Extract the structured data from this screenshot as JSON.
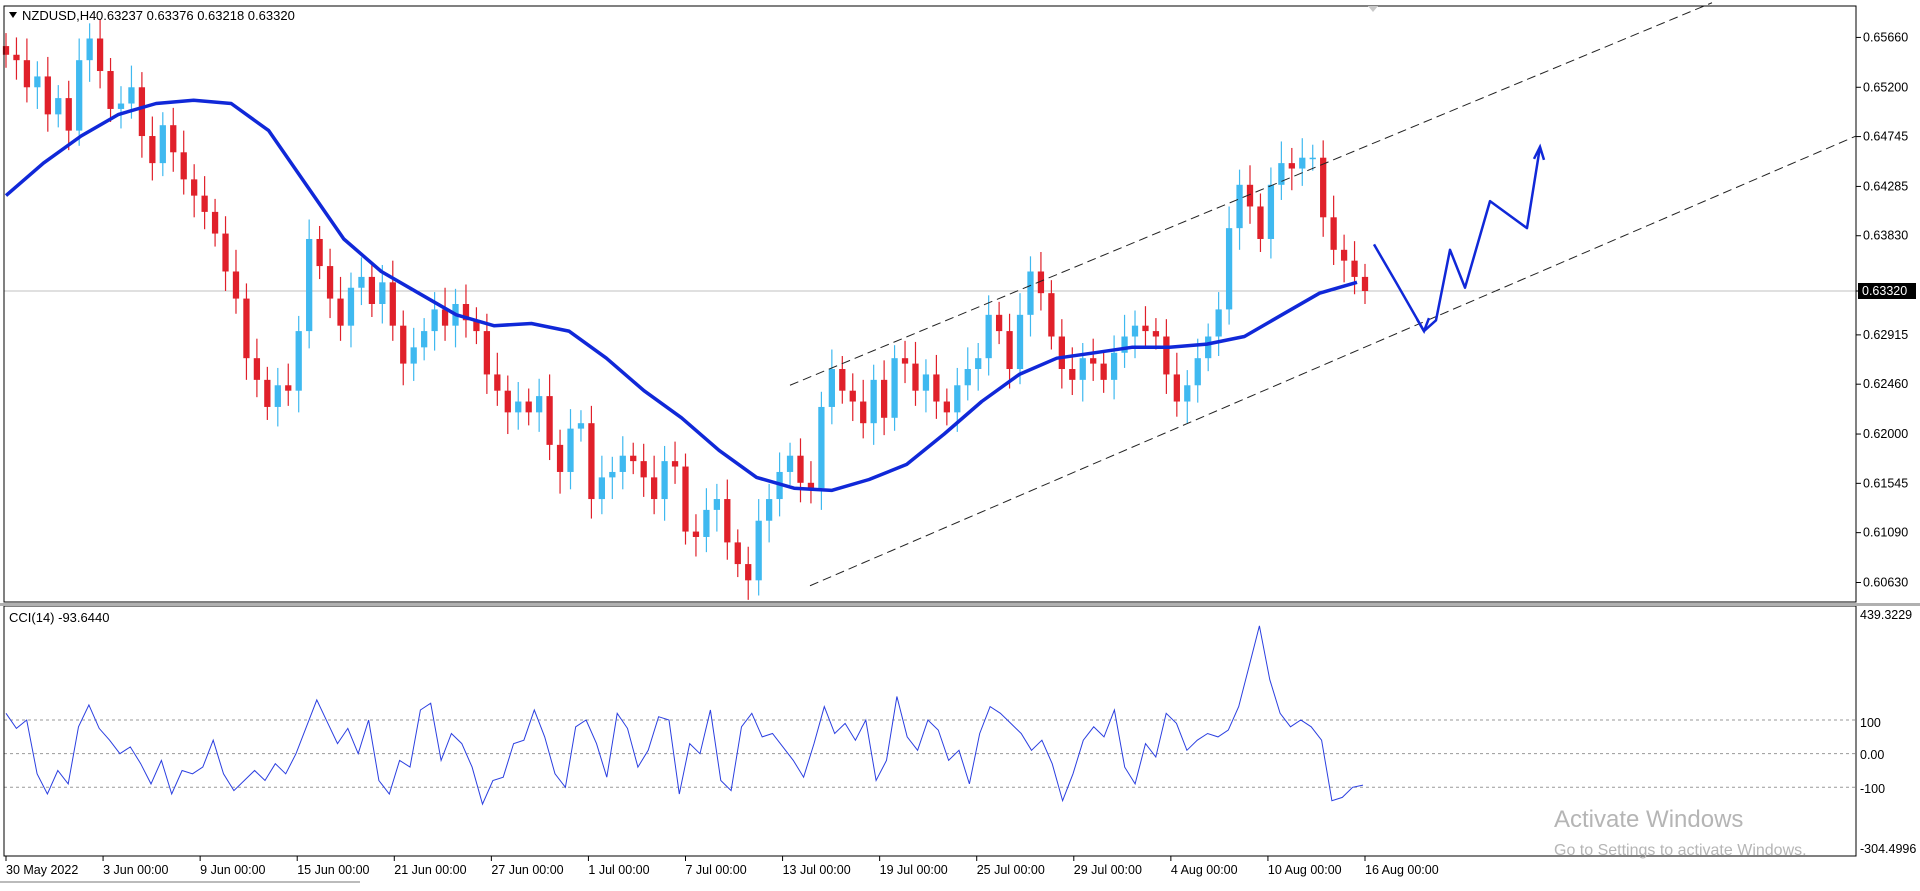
{
  "header": {
    "symbol": "NZDUSD,H4",
    "ohlc": "0.63237 0.63376 0.63218 0.63320"
  },
  "indicator": {
    "label": "CCI(14) -93.6440",
    "levels": [
      "100",
      "0.00",
      "-100"
    ],
    "scale_top": "439.3229",
    "scale_bottom": "-304.4996"
  },
  "watermark": {
    "line1": "Activate Windows",
    "line2": "Go to Settings to activate Windows."
  },
  "colors": {
    "bull": "#3fb9f0",
    "bear": "#e0202a",
    "ma": "#1028d8",
    "cci": "#2b3fe0",
    "channel": "#222222",
    "drawing": "#1028d8"
  },
  "chart_data": [
    {
      "type": "candlestick",
      "symbol": "NZDUSD",
      "timeframe": "H4",
      "ylim": [
        0.6045,
        0.6595
      ],
      "y_ticks": [
        "0.65660",
        "0.65200",
        "0.64745",
        "0.64285",
        "0.63830",
        "0.63320",
        "0.62915",
        "0.62460",
        "0.62000",
        "0.61545",
        "0.61090",
        "0.60630"
      ],
      "current_price": 0.6332,
      "x_labels": [
        "30 May 2022",
        "3 Jun 00:00",
        "9 Jun 00:00",
        "15 Jun 00:00",
        "21 Jun 00:00",
        "27 Jun 00:00",
        "1 Jul 00:00",
        "7 Jul 00:00",
        "13 Jul 00:00",
        "19 Jul 00:00",
        "25 Jul 00:00",
        "29 Jul 00:00",
        "4 Aug 00:00",
        "10 Aug 00:00",
        "16 Aug 00:00"
      ],
      "close_path": [
        0.655,
        0.6545,
        0.652,
        0.653,
        0.6495,
        0.651,
        0.648,
        0.6545,
        0.6565,
        0.6535,
        0.65,
        0.6505,
        0.652,
        0.6475,
        0.645,
        0.6485,
        0.646,
        0.6435,
        0.642,
        0.6405,
        0.6385,
        0.635,
        0.6325,
        0.627,
        0.625,
        0.6225,
        0.6245,
        0.624,
        0.6295,
        0.638,
        0.6355,
        0.6325,
        0.63,
        0.6335,
        0.6345,
        0.632,
        0.634,
        0.63,
        0.6265,
        0.628,
        0.6295,
        0.6315,
        0.63,
        0.632,
        0.6305,
        0.6295,
        0.6255,
        0.624,
        0.622,
        0.623,
        0.622,
        0.6235,
        0.619,
        0.6165,
        0.6205,
        0.621,
        0.614,
        0.616,
        0.6165,
        0.618,
        0.6175,
        0.616,
        0.614,
        0.6175,
        0.617,
        0.611,
        0.6105,
        0.613,
        0.614,
        0.61,
        0.608,
        0.6065,
        0.612,
        0.614,
        0.6165,
        0.618,
        0.6155,
        0.615,
        0.6225,
        0.626,
        0.624,
        0.623,
        0.621,
        0.625,
        0.6215,
        0.627,
        0.6265,
        0.624,
        0.6255,
        0.623,
        0.622,
        0.6245,
        0.626,
        0.627,
        0.631,
        0.6295,
        0.626,
        0.631,
        0.635,
        0.633,
        0.629,
        0.626,
        0.625,
        0.627,
        0.6265,
        0.625,
        0.6275,
        0.629,
        0.63,
        0.6295,
        0.629,
        0.6255,
        0.623,
        0.6245,
        0.627,
        0.629,
        0.6315,
        0.639,
        0.643,
        0.641,
        0.638,
        0.643,
        0.645,
        0.6445,
        0.6455,
        0.6455,
        0.64,
        0.637,
        0.636,
        0.6345,
        0.6332
      ],
      "ma_path": [
        0.642,
        0.645,
        0.6475,
        0.6495,
        0.6505,
        0.6508,
        0.6505,
        0.648,
        0.643,
        0.638,
        0.635,
        0.633,
        0.631,
        0.63,
        0.6302,
        0.6295,
        0.627,
        0.624,
        0.6215,
        0.6185,
        0.616,
        0.615,
        0.6148,
        0.6158,
        0.6172,
        0.62,
        0.623,
        0.6255,
        0.627,
        0.6275,
        0.628,
        0.628,
        0.6283,
        0.629,
        0.631,
        0.633,
        0.634
      ],
      "channel": {
        "upper_start": [
          0.6245,
          0.6598
        ],
        "lower_start": [
          0.606,
          0.6475
        ]
      },
      "projection_path": [
        0.6375,
        0.634,
        0.6295,
        0.6305,
        0.637,
        0.6335,
        0.6415,
        0.639,
        0.6465
      ]
    },
    {
      "type": "line",
      "name": "CCI(14)",
      "last_value": -93.644,
      "ylim": [
        -304.4996,
        439.3229
      ],
      "levels": [
        100,
        0,
        -100
      ],
      "values": [
        120,
        75,
        100,
        -60,
        -120,
        -50,
        -90,
        80,
        145,
        75,
        40,
        0,
        20,
        -30,
        -90,
        -20,
        -120,
        -50,
        -60,
        -40,
        40,
        -60,
        -110,
        -80,
        -50,
        -80,
        -30,
        -60,
        0,
        80,
        160,
        95,
        30,
        75,
        0,
        100,
        -80,
        -120,
        -20,
        -40,
        130,
        150,
        -20,
        60,
        30,
        -40,
        -150,
        -80,
        -70,
        30,
        40,
        130,
        50,
        -60,
        -100,
        80,
        100,
        30,
        -70,
        120,
        75,
        -40,
        10,
        110,
        100,
        -120,
        30,
        0,
        130,
        -80,
        -110,
        80,
        120,
        50,
        60,
        20,
        -20,
        -70,
        30,
        140,
        60,
        90,
        40,
        100,
        -80,
        -20,
        170,
        50,
        10,
        100,
        70,
        -20,
        10,
        -90,
        60,
        140,
        120,
        90,
        60,
        10,
        40,
        -30,
        -140,
        -60,
        40,
        80,
        50,
        130,
        -40,
        -90,
        30,
        -10,
        120,
        90,
        10,
        40,
        60,
        50,
        70,
        140,
        260,
        380,
        220,
        120,
        80,
        100,
        80,
        40,
        -140,
        -130,
        -100,
        -93.644
      ]
    }
  ]
}
